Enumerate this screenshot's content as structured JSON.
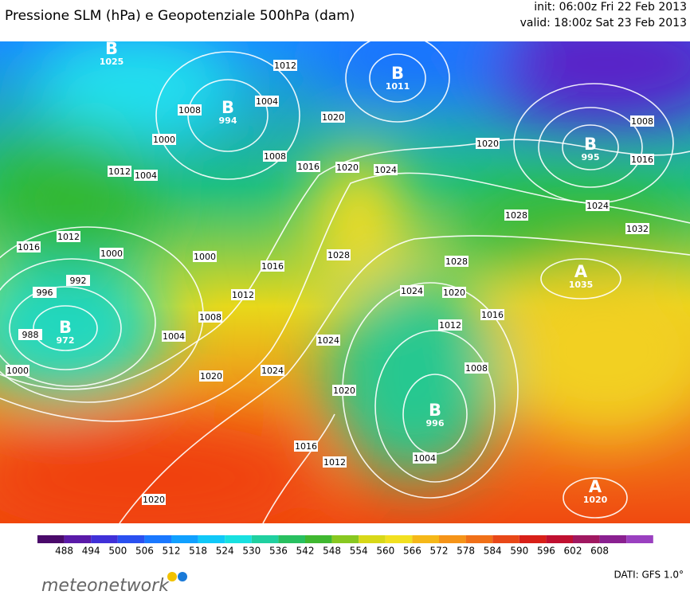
{
  "header": {
    "title": "Pressione SLM (hPa) e Geopotenziale 500hPa (dam)",
    "init": "init: 06:00z Fri 22 Feb 2013",
    "valid": "valid: 18:00z Sat 23 Feb 2013"
  },
  "map": {
    "centers": [
      {
        "symbol": "B",
        "pressure": "1025"
      },
      {
        "symbol": "B",
        "pressure": "994"
      },
      {
        "symbol": "B",
        "pressure": "1011"
      },
      {
        "symbol": "B",
        "pressure": "995"
      },
      {
        "symbol": "B",
        "pressure": "972"
      },
      {
        "symbol": "A",
        "pressure": "1035"
      },
      {
        "symbol": "B",
        "pressure": "996"
      },
      {
        "symbol": "A",
        "pressure": "1020"
      }
    ],
    "isobar_labels": [
      "1012",
      "1008",
      "1004",
      "1020",
      "1000",
      "1012",
      "1004",
      "1008",
      "1016",
      "1020",
      "1024",
      "1020",
      "1008",
      "1016",
      "1028",
      "1024",
      "1032",
      "1016",
      "1012",
      "1000",
      "996",
      "992",
      "1000",
      "988",
      "1000",
      "1004",
      "1008",
      "1012",
      "1016",
      "1020",
      "1024",
      "1028",
      "1028",
      "1024",
      "1020",
      "1016",
      "1012",
      "1024",
      "1008",
      "1020",
      "1016",
      "1012",
      "1004",
      "1020"
    ]
  },
  "colorbar": {
    "labels": [
      488,
      494,
      500,
      506,
      512,
      518,
      524,
      530,
      536,
      542,
      548,
      554,
      560,
      566,
      572,
      578,
      584,
      590,
      596,
      602,
      608
    ]
  },
  "footer": {
    "brand": "meteonetwork",
    "source": "DATI: GFS 1.0°"
  }
}
